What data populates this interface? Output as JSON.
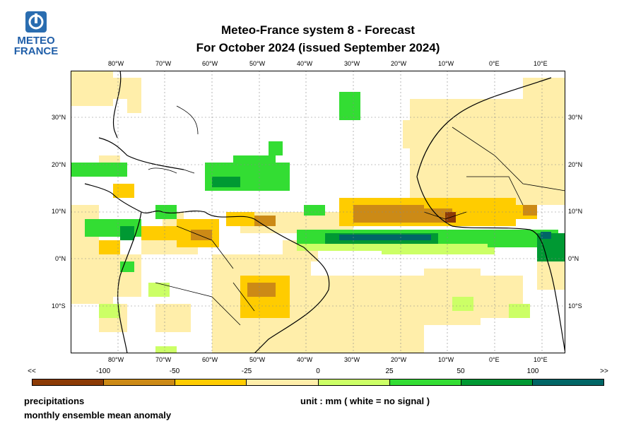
{
  "logo": {
    "line1": "METEO",
    "line2": "FRANCE"
  },
  "title": {
    "line1": "Meteo-France system 8  -  Forecast",
    "line2": "For October 2024      (issued September 2024)"
  },
  "map": {
    "lon_labels": [
      "80°W",
      "70°W",
      "60°W",
      "50°W",
      "40°W",
      "30°W",
      "20°W",
      "10°W",
      "0°E",
      "10°E"
    ],
    "lat_labels": [
      "30°N",
      "20°N",
      "10°N",
      "0°N",
      "10°S"
    ]
  },
  "legend": {
    "bins": [
      {
        "label": "<<"
      },
      {
        "label": "-100"
      },
      {
        "label": "-50"
      },
      {
        "label": "-25"
      },
      {
        "label": "0"
      },
      {
        "label": "25"
      },
      {
        "label": "50"
      },
      {
        "label": "100"
      },
      {
        "label": ">>"
      }
    ],
    "colors": [
      "#8c3b06",
      "#cc8a16",
      "#ffcc00",
      "#ffeeaa",
      "#ccff66",
      "#33dd33",
      "#009933",
      "#006666"
    ]
  },
  "footer": {
    "variable": "precipitations",
    "description": "monthly ensemble mean anomaly",
    "unit_note": "unit : mm  ( white = no signal )"
  }
}
